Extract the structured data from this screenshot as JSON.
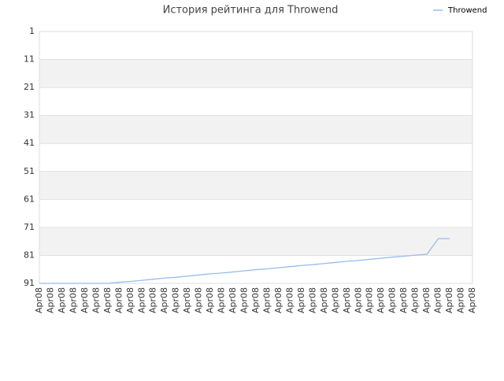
{
  "chart_data": {
    "type": "line",
    "title": "История рейтинга для Throwend",
    "categories": [
      "Apr08",
      "Apr08",
      "Apr08",
      "Apr08",
      "Apr08",
      "Apr08",
      "Apr08",
      "Apr08",
      "Apr08",
      "Apr08",
      "Apr08",
      "Apr08",
      "Apr08",
      "Apr08",
      "Apr08",
      "Apr08",
      "Apr08",
      "Apr08",
      "Apr08",
      "Apr08",
      "Apr08",
      "Apr08",
      "Apr08",
      "Apr08",
      "Apr08",
      "Apr08",
      "Apr08",
      "Apr08",
      "Apr08",
      "Apr08",
      "Apr08",
      "Apr08",
      "Apr08",
      "Apr08",
      "Apr08",
      "Apr08",
      "Apr08",
      "Apr08",
      "Apr08"
    ],
    "series": [
      {
        "name": "Throwend",
        "color": "#99bbee",
        "values": [
          91,
          91,
          91,
          91,
          91,
          91,
          91,
          90.6,
          90.3,
          89.9,
          89.5,
          89.1,
          88.8,
          88.4,
          88.0,
          87.6,
          87.3,
          86.9,
          86.5,
          86.1,
          85.8,
          85.4,
          85.0,
          84.6,
          84.3,
          83.9,
          83.5,
          83.1,
          82.8,
          82.4,
          82.0,
          81.6,
          81.3,
          80.9,
          80.6,
          75,
          75,
          null,
          null
        ]
      }
    ],
    "ylim": [
      91,
      1
    ],
    "yticks": [
      1,
      11,
      21,
      31,
      41,
      51,
      61,
      71,
      81,
      91
    ],
    "grid": true,
    "legend": "top-right"
  }
}
